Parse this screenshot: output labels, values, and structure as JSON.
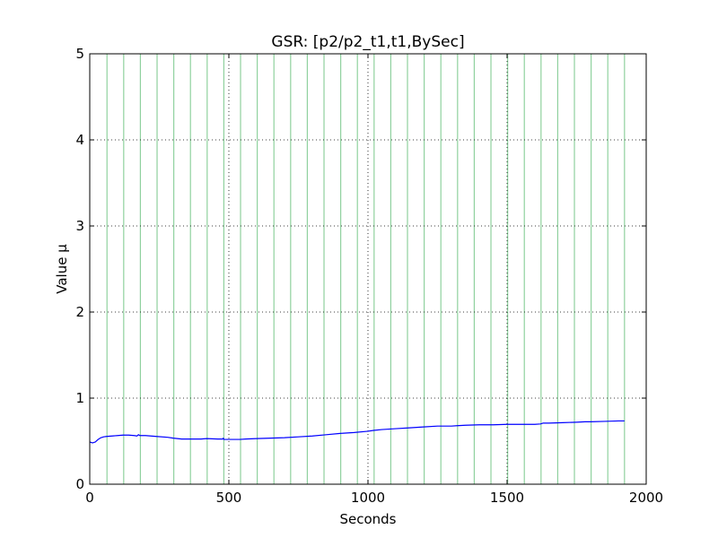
{
  "chart_data": {
    "type": "line",
    "title": "GSR: [p2/p2_t1,t1,BySec]",
    "xlabel": "Seconds",
    "ylabel": "Value μ",
    "xlim": [
      0,
      2000
    ],
    "ylim": [
      0,
      5
    ],
    "xticks": [
      0,
      500,
      1000,
      1500,
      2000
    ],
    "yticks": [
      0,
      1,
      2,
      3,
      4,
      5
    ],
    "xtick_labels": [
      "0",
      "500",
      "1000",
      "1500",
      "2000"
    ],
    "ytick_labels": [
      "0",
      "1",
      "2",
      "3",
      "4",
      "5"
    ],
    "grid": true,
    "marker_lines_x": [
      62,
      122,
      182,
      242,
      302,
      362,
      422,
      482,
      542,
      602,
      662,
      722,
      782,
      842,
      902,
      962,
      1022,
      1082,
      1142,
      1202,
      1262,
      1322,
      1382,
      1442,
      1502,
      1562,
      1622,
      1682,
      1742,
      1802,
      1862,
      1922
    ],
    "series": [
      {
        "name": "GSR",
        "color": "#0000ff",
        "x": [
          0,
          10,
          20,
          30,
          40,
          50,
          60,
          80,
          100,
          120,
          140,
          160,
          170,
          175,
          180,
          200,
          240,
          280,
          300,
          330,
          360,
          400,
          420,
          460,
          478,
          480,
          482,
          490,
          500,
          520,
          540,
          560,
          600,
          650,
          700,
          750,
          800,
          850,
          900,
          950,
          1000,
          1020,
          1050,
          1100,
          1150,
          1200,
          1250,
          1300,
          1320,
          1350,
          1400,
          1450,
          1500,
          1550,
          1600,
          1620,
          1630,
          1650,
          1700,
          1750,
          1780,
          1800,
          1850,
          1900,
          1922
        ],
        "y": [
          0.49,
          0.48,
          0.49,
          0.52,
          0.54,
          0.55,
          0.555,
          0.56,
          0.565,
          0.57,
          0.57,
          0.565,
          0.56,
          0.575,
          0.565,
          0.565,
          0.555,
          0.545,
          0.535,
          0.525,
          0.525,
          0.525,
          0.53,
          0.525,
          0.525,
          0.535,
          0.52,
          0.52,
          0.52,
          0.52,
          0.52,
          0.525,
          0.53,
          0.535,
          0.54,
          0.55,
          0.56,
          0.575,
          0.59,
          0.6,
          0.615,
          0.625,
          0.635,
          0.645,
          0.655,
          0.665,
          0.675,
          0.675,
          0.68,
          0.685,
          0.69,
          0.69,
          0.695,
          0.695,
          0.695,
          0.7,
          0.71,
          0.71,
          0.715,
          0.72,
          0.725,
          0.725,
          0.73,
          0.735,
          0.735
        ]
      }
    ]
  }
}
